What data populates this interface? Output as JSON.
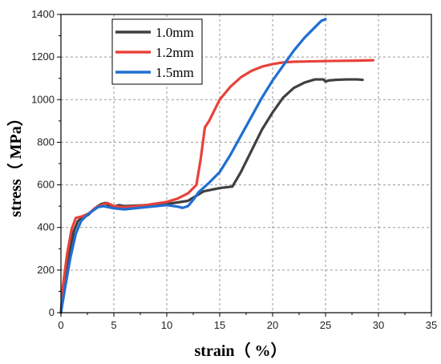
{
  "chart_data": {
    "type": "line",
    "xlabel": "strain（ %）",
    "ylabel": "stress（ MPa）",
    "xlim": [
      0,
      35
    ],
    "ylim": [
      0,
      1400
    ],
    "x_ticks": [
      "0",
      "5",
      "10",
      "15",
      "20",
      "25",
      "30",
      "35"
    ],
    "y_ticks": [
      "0",
      "200",
      "400",
      "600",
      "800",
      "1000",
      "1200",
      "1400"
    ],
    "grid": true,
    "legend_position": "top-left",
    "series": [
      {
        "name": "1.0mm",
        "color": "#404040",
        "points": [
          [
            0,
            0
          ],
          [
            0.3,
            150
          ],
          [
            0.7,
            260
          ],
          [
            1.2,
            380
          ],
          [
            1.6,
            430
          ],
          [
            2.0,
            445
          ],
          [
            2.6,
            460
          ],
          [
            3.2,
            490
          ],
          [
            3.8,
            510
          ],
          [
            4.2,
            515
          ],
          [
            4.6,
            500
          ],
          [
            5.0,
            498
          ],
          [
            5.5,
            505
          ],
          [
            6.0,
            500
          ],
          [
            8.0,
            505
          ],
          [
            10.0,
            510
          ],
          [
            12.0,
            525
          ],
          [
            13.5,
            570
          ],
          [
            15.0,
            585
          ],
          [
            16.2,
            592
          ],
          [
            17.0,
            660
          ],
          [
            18.0,
            760
          ],
          [
            19.0,
            860
          ],
          [
            20.0,
            940
          ],
          [
            21.0,
            1010
          ],
          [
            22.0,
            1055
          ],
          [
            23.0,
            1080
          ],
          [
            24.0,
            1095
          ],
          [
            24.8,
            1095
          ],
          [
            25.0,
            1085
          ],
          [
            25.3,
            1090
          ],
          [
            26.0,
            1093
          ],
          [
            27.0,
            1095
          ],
          [
            28.0,
            1095
          ],
          [
            28.5,
            1093
          ]
        ]
      },
      {
        "name": "1.2mm",
        "color": "#e8423a",
        "points": [
          [
            0,
            0
          ],
          [
            0.2,
            130
          ],
          [
            0.6,
            280
          ],
          [
            1.0,
            390
          ],
          [
            1.4,
            445
          ],
          [
            2.0,
            452
          ],
          [
            2.6,
            465
          ],
          [
            3.2,
            490
          ],
          [
            3.8,
            505
          ],
          [
            4.4,
            515
          ],
          [
            5.0,
            500
          ],
          [
            5.5,
            498
          ],
          [
            6.0,
            495
          ],
          [
            8.0,
            505
          ],
          [
            10.0,
            520
          ],
          [
            11.0,
            535
          ],
          [
            12.0,
            560
          ],
          [
            12.8,
            600
          ],
          [
            13.2,
            720
          ],
          [
            13.6,
            870
          ],
          [
            14.0,
            900
          ],
          [
            14.5,
            950
          ],
          [
            15.0,
            1000
          ],
          [
            16.0,
            1060
          ],
          [
            17.0,
            1105
          ],
          [
            18.0,
            1135
          ],
          [
            19.0,
            1155
          ],
          [
            20.0,
            1167
          ],
          [
            21.0,
            1175
          ],
          [
            22.0,
            1178
          ],
          [
            24.0,
            1180
          ],
          [
            26.0,
            1182
          ],
          [
            28.0,
            1183
          ],
          [
            29.5,
            1185
          ]
        ]
      },
      {
        "name": "1.5mm",
        "color": "#1f6fd1",
        "points": [
          [
            0,
            0
          ],
          [
            0.4,
            120
          ],
          [
            0.9,
            260
          ],
          [
            1.4,
            370
          ],
          [
            1.9,
            430
          ],
          [
            2.5,
            460
          ],
          [
            3.0,
            478
          ],
          [
            3.5,
            495
          ],
          [
            4.0,
            500
          ],
          [
            4.5,
            495
          ],
          [
            5.0,
            490
          ],
          [
            6.0,
            485
          ],
          [
            8.0,
            495
          ],
          [
            10.0,
            505
          ],
          [
            11.0,
            498
          ],
          [
            11.5,
            492
          ],
          [
            12.0,
            500
          ],
          [
            12.5,
            530
          ],
          [
            13.0,
            565
          ],
          [
            14.0,
            610
          ],
          [
            15.0,
            660
          ],
          [
            16.0,
            740
          ],
          [
            17.0,
            830
          ],
          [
            18.0,
            920
          ],
          [
            19.0,
            1010
          ],
          [
            20.0,
            1090
          ],
          [
            21.0,
            1160
          ],
          [
            22.0,
            1230
          ],
          [
            23.0,
            1290
          ],
          [
            24.0,
            1340
          ],
          [
            24.6,
            1370
          ],
          [
            25.0,
            1378
          ]
        ]
      }
    ]
  }
}
